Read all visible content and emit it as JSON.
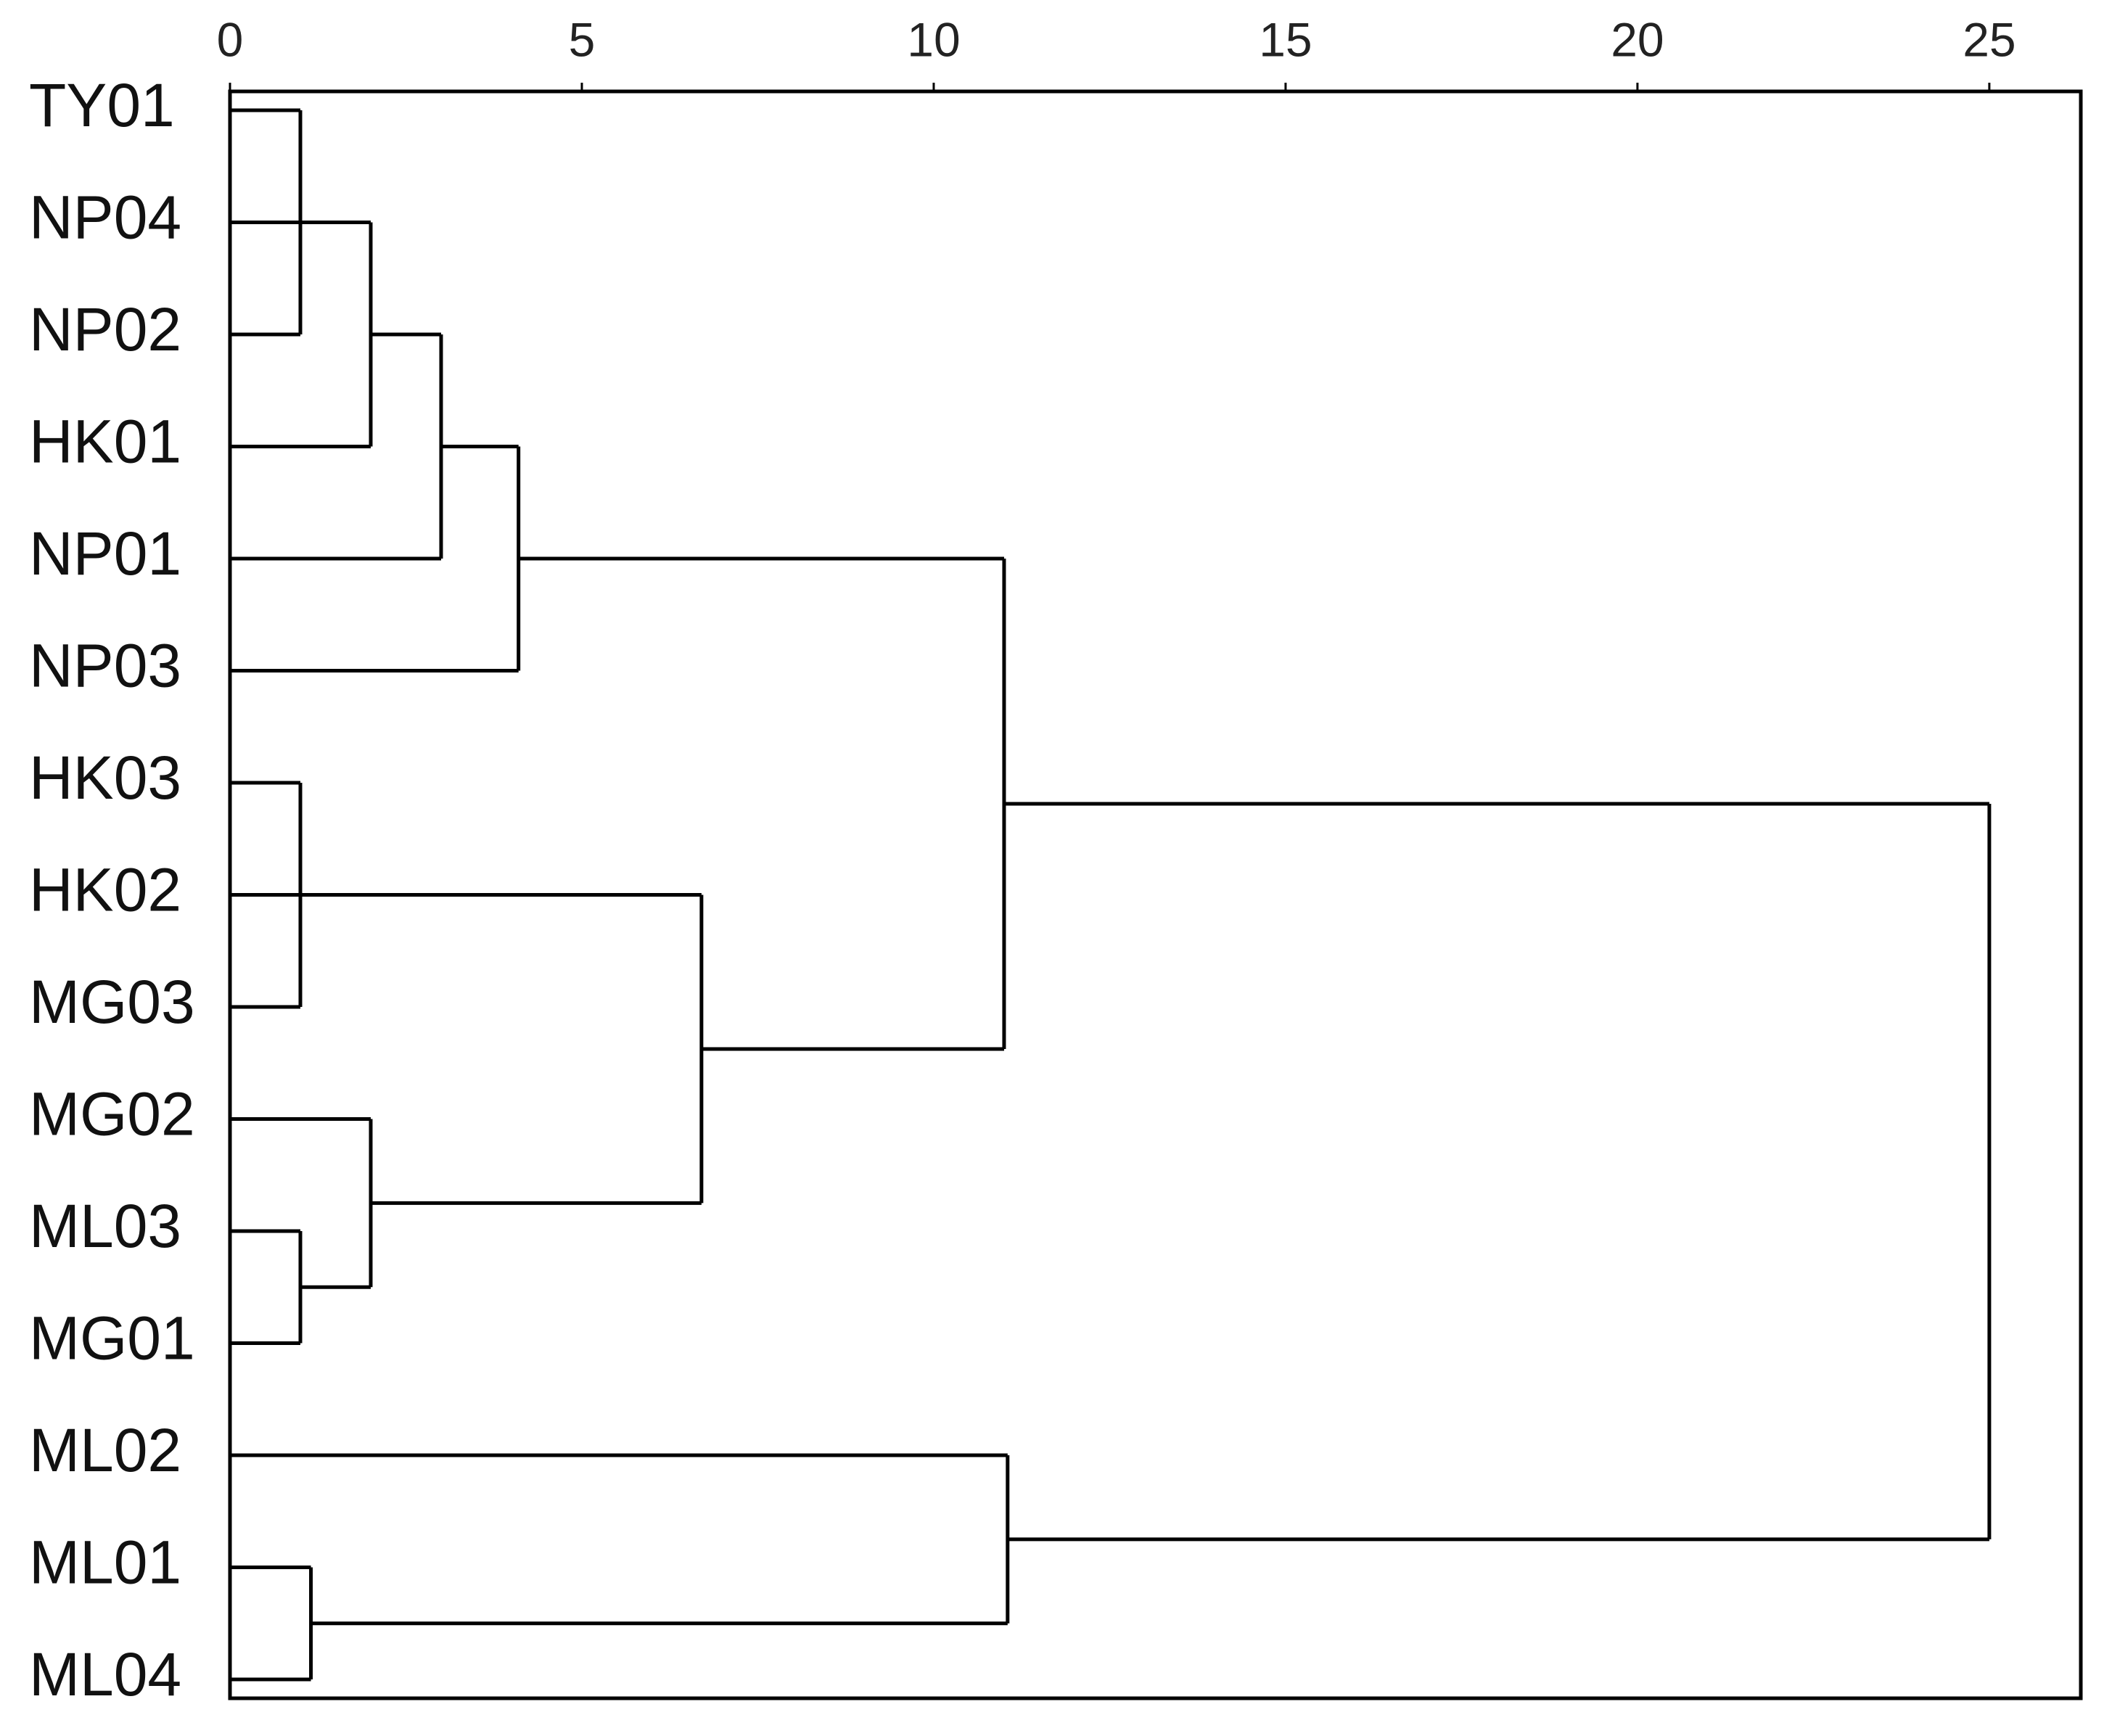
{
  "chart_data": {
    "type": "dendrogram",
    "xlim": [
      0,
      26.3
    ],
    "xticks": [
      0,
      5,
      10,
      15,
      20,
      25
    ],
    "tree": {
      "height": 25,
      "children": [
        {
          "height": 11,
          "children": [
            {
              "height": 4.1,
              "children": [
                {
                  "height": 3,
                  "children": [
                    {
                      "height": 2,
                      "children": [
                        {
                          "height": 1,
                          "children": [
                            {
                              "label": "TY01"
                            },
                            {
                              "label": "NP04"
                            },
                            {
                              "label": "NP02"
                            }
                          ]
                        },
                        {
                          "label": "HK01"
                        }
                      ]
                    },
                    {
                      "label": "NP01"
                    }
                  ]
                },
                {
                  "label": "NP03"
                }
              ]
            },
            {
              "height": 6.7,
              "children": [
                {
                  "height": 1,
                  "children": [
                    {
                      "label": "HK03"
                    },
                    {
                      "label": "HK02"
                    },
                    {
                      "label": "MG03"
                    }
                  ]
                },
                {
                  "height": 2,
                  "children": [
                    {
                      "label": "MG02"
                    },
                    {
                      "height": 1,
                      "children": [
                        {
                          "label": "ML03"
                        },
                        {
                          "label": "MG01"
                        }
                      ]
                    }
                  ]
                }
              ]
            }
          ]
        },
        {
          "height": 11.05,
          "children": [
            {
              "label": "ML02"
            },
            {
              "height": 1.15,
              "children": [
                {
                  "label": "ML01"
                },
                {
                  "label": "ML04"
                }
              ]
            }
          ]
        }
      ]
    }
  }
}
